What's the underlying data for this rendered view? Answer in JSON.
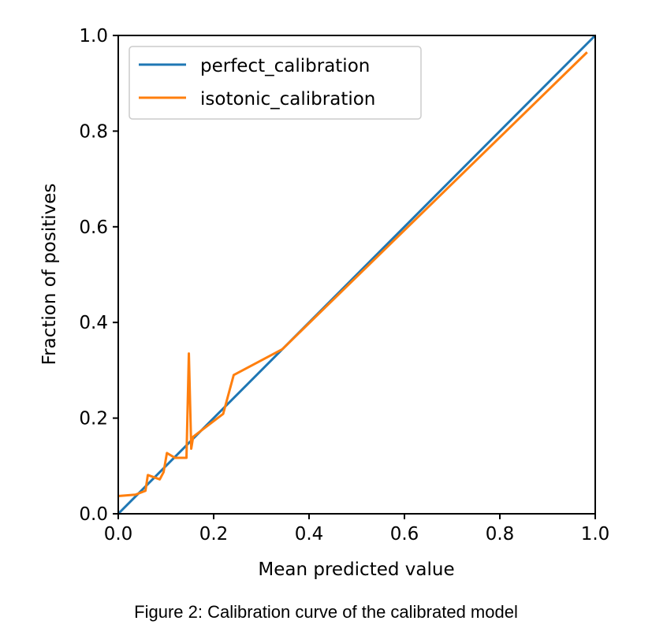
{
  "chart_data": {
    "type": "line",
    "title": "",
    "xlabel": "Mean predicted value",
    "ylabel": "Fraction of positives",
    "xlim": [
      0,
      1
    ],
    "ylim": [
      0,
      1
    ],
    "xticks": [
      "0.0",
      "0.2",
      "0.4",
      "0.6",
      "0.8",
      "1.0"
    ],
    "yticks": [
      "0.0",
      "0.2",
      "0.4",
      "0.6",
      "0.8",
      "1.0"
    ],
    "grid": false,
    "legend_placement": "top-left",
    "series": [
      {
        "name": "perfect_calibration",
        "color": "#1f77b4",
        "x": [
          0,
          1
        ],
        "y": [
          0,
          1
        ]
      },
      {
        "name": "isotonic_calibration",
        "color": "#ff7f0e",
        "x": [
          0.0,
          0.036,
          0.057,
          0.062,
          0.087,
          0.095,
          0.102,
          0.119,
          0.143,
          0.148,
          0.153,
          0.157,
          0.22,
          0.242,
          0.344,
          0.983
        ],
        "y": [
          0.037,
          0.04,
          0.048,
          0.081,
          0.072,
          0.087,
          0.127,
          0.117,
          0.117,
          0.335,
          0.136,
          0.161,
          0.209,
          0.29,
          0.344,
          0.965
        ]
      }
    ]
  },
  "caption": "Figure 2: Calibration curve of the calibrated model"
}
